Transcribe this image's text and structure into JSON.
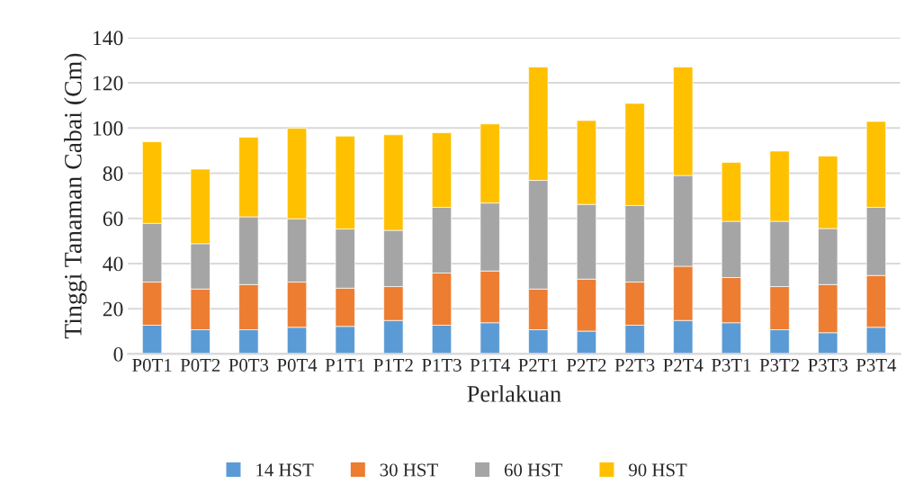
{
  "chart_data": {
    "type": "bar",
    "stacked": true,
    "xlabel": "Perlakuan",
    "ylabel": "Tinggi Tanaman Cabai (Cm)",
    "categories": [
      "P0T1",
      "P0T2",
      "P0T3",
      "P0T4",
      "P1T1",
      "P1T2",
      "P1T3",
      "P1T4",
      "P2T1",
      "P2T2",
      "P2T3",
      "P2T4",
      "P3T1",
      "P3T2",
      "P3T3",
      "P3T4"
    ],
    "series": [
      {
        "name": "14 HST",
        "color": "#5b9bd5",
        "values": [
          12.7,
          10.7,
          10.7,
          11.8,
          12.2,
          14.8,
          12.7,
          13.8,
          10.7,
          10.1,
          12.7,
          14.8,
          13.8,
          10.7,
          9.4,
          11.8
        ]
      },
      {
        "name": "30 HST",
        "color": "#ed7d31",
        "values": [
          19.1,
          18.0,
          20.0,
          20.0,
          16.9,
          15.0,
          23.1,
          22.9,
          18.0,
          23.0,
          19.1,
          24.0,
          20.0,
          19.1,
          21.3,
          22.9
        ]
      },
      {
        "name": "60 HST",
        "color": "#a5a5a5",
        "values": [
          26.0,
          20.1,
          30.0,
          28.0,
          26.2,
          24.9,
          29.1,
          30.1,
          48.1,
          33.1,
          33.9,
          40.2,
          24.9,
          28.9,
          24.8,
          30.2
        ]
      },
      {
        "name": "90 HST",
        "color": "#ffc000",
        "values": [
          36.1,
          33.0,
          35.2,
          40.1,
          41.1,
          42.3,
          33.0,
          35.0,
          50.2,
          37.1,
          45.2,
          48.0,
          26.1,
          31.1,
          32.1,
          38.0
        ]
      }
    ],
    "ylim": [
      0,
      140
    ],
    "yticks": [
      0,
      20,
      40,
      60,
      80,
      100,
      120,
      140
    ],
    "grid": "y",
    "legend": "bottom"
  }
}
